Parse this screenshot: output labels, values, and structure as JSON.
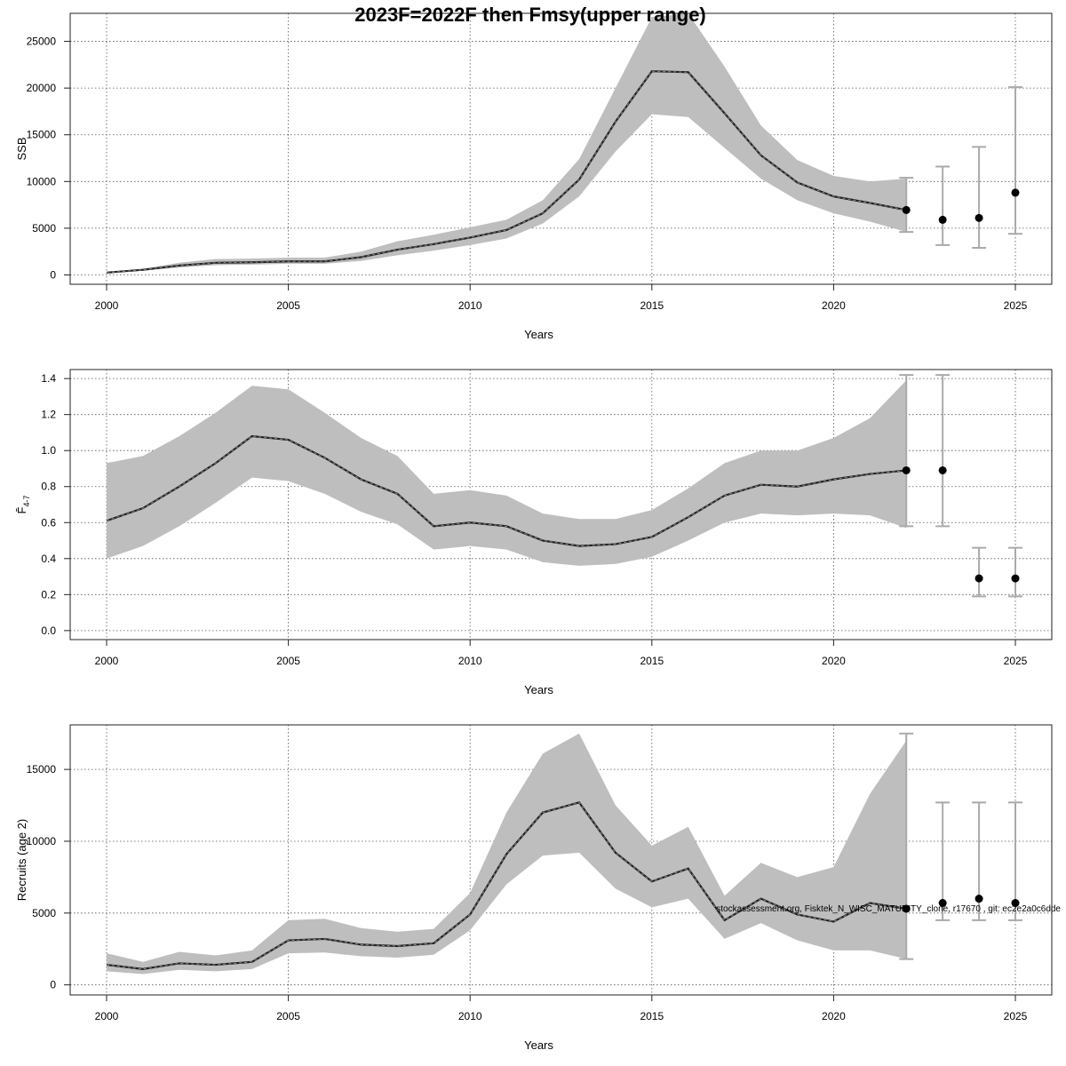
{
  "figure": {
    "title": "2023F=2022F then Fmsy(upper range)",
    "footer": "stockassessment.org, Fisktek_N_WISC_MATURITY_clone, r17670 , git: ec2e2a0c6dde"
  },
  "chart_data": [
    {
      "type": "line",
      "xlabel": "Years",
      "ylabel": "SSB",
      "xlim": [
        1999,
        2026
      ],
      "ylim": [
        -1000,
        28000
      ],
      "xticks": [
        2000,
        2005,
        2010,
        2015,
        2020,
        2025
      ],
      "yticks": [
        0,
        5000,
        10000,
        15000,
        20000,
        25000
      ],
      "grid": true,
      "series": [
        {
          "x": [
            2000,
            2001,
            2002,
            2003,
            2004,
            2005,
            2006,
            2007,
            2008,
            2009,
            2010,
            2011,
            2012,
            2013,
            2014,
            2015,
            2016,
            2017,
            2018,
            2019,
            2020,
            2021,
            2022
          ],
          "values": [
            250,
            550,
            1000,
            1300,
            1350,
            1450,
            1450,
            1900,
            2700,
            3300,
            4000,
            4800,
            6600,
            10200,
            16400,
            21800,
            21700,
            17300,
            12800,
            9900,
            8400,
            7700,
            6950
          ],
          "lower": [
            200,
            450,
            800,
            1050,
            1100,
            1200,
            1200,
            1500,
            2100,
            2600,
            3200,
            3900,
            5500,
            8400,
            13200,
            17200,
            16900,
            13600,
            10300,
            8000,
            6600,
            5700,
            4600
          ],
          "upper": [
            300,
            650,
            1300,
            1700,
            1750,
            1850,
            1850,
            2500,
            3600,
            4300,
            5100,
            5900,
            8000,
            12400,
            20000,
            27600,
            28000,
            22300,
            16000,
            12300,
            10600,
            10000,
            10300
          ]
        }
      ],
      "points": [
        {
          "x": 2022,
          "y": 6950,
          "lower": 4600,
          "upper": 10400
        },
        {
          "x": 2023,
          "y": 5900,
          "lower": 3200,
          "upper": 11600
        },
        {
          "x": 2024,
          "y": 6100,
          "lower": 2900,
          "upper": 13700
        },
        {
          "x": 2025,
          "y": 8800,
          "lower": 4400,
          "upper": 20100
        }
      ]
    },
    {
      "type": "line",
      "xlabel": "Years",
      "ylabel": "F̄4-7",
      "ylabel_main": "F̄",
      "ylabel_sub": "4-7",
      "xlim": [
        1999,
        2026
      ],
      "ylim": [
        -0.05,
        1.45
      ],
      "xticks": [
        2000,
        2005,
        2010,
        2015,
        2020,
        2025
      ],
      "yticks": [
        0.0,
        0.2,
        0.4,
        0.6,
        0.8,
        1.0,
        1.2,
        1.4
      ],
      "ytick_labels": [
        "0.0",
        "0.2",
        "0.4",
        "0.6",
        "0.8",
        "1.0",
        "1.2",
        "1.4"
      ],
      "grid": true,
      "series": [
        {
          "x": [
            2000,
            2001,
            2002,
            2003,
            2004,
            2005,
            2006,
            2007,
            2008,
            2009,
            2010,
            2011,
            2012,
            2013,
            2014,
            2015,
            2016,
            2017,
            2018,
            2019,
            2020,
            2021,
            2022
          ],
          "values": [
            0.61,
            0.68,
            0.8,
            0.93,
            1.08,
            1.06,
            0.96,
            0.84,
            0.76,
            0.58,
            0.6,
            0.58,
            0.5,
            0.47,
            0.48,
            0.52,
            0.63,
            0.75,
            0.81,
            0.8,
            0.84,
            0.87,
            0.89
          ],
          "lower": [
            0.4,
            0.47,
            0.58,
            0.71,
            0.85,
            0.83,
            0.76,
            0.66,
            0.59,
            0.45,
            0.47,
            0.45,
            0.38,
            0.36,
            0.37,
            0.41,
            0.5,
            0.6,
            0.65,
            0.64,
            0.65,
            0.64,
            0.57
          ],
          "upper": [
            0.93,
            0.97,
            1.08,
            1.21,
            1.36,
            1.34,
            1.21,
            1.07,
            0.97,
            0.76,
            0.78,
            0.75,
            0.65,
            0.62,
            0.62,
            0.67,
            0.79,
            0.93,
            1.0,
            1.0,
            1.07,
            1.18,
            1.39
          ]
        }
      ],
      "points": [
        {
          "x": 2022,
          "y": 0.89,
          "lower": 0.58,
          "upper": 1.42
        },
        {
          "x": 2023,
          "y": 0.89,
          "lower": 0.58,
          "upper": 1.42
        },
        {
          "x": 2024,
          "y": 0.29,
          "lower": 0.19,
          "upper": 0.46
        },
        {
          "x": 2025,
          "y": 0.29,
          "lower": 0.19,
          "upper": 0.46
        }
      ]
    },
    {
      "type": "line",
      "xlabel": "Years",
      "ylabel": "Recruits (age 2)",
      "xlim": [
        1999,
        2026
      ],
      "ylim": [
        -700,
        18100
      ],
      "xticks": [
        2000,
        2005,
        2010,
        2015,
        2020,
        2025
      ],
      "yticks": [
        0,
        5000,
        10000,
        15000
      ],
      "grid": true,
      "series": [
        {
          "x": [
            2000,
            2001,
            2002,
            2003,
            2004,
            2005,
            2006,
            2007,
            2008,
            2009,
            2010,
            2011,
            2012,
            2013,
            2014,
            2015,
            2016,
            2017,
            2018,
            2019,
            2020,
            2021,
            2022
          ],
          "values": [
            1400,
            1100,
            1500,
            1400,
            1600,
            3100,
            3200,
            2800,
            2700,
            2900,
            4900,
            9100,
            12000,
            12700,
            9200,
            7200,
            8100,
            4500,
            6000,
            4900,
            4400,
            5700,
            5300
          ],
          "lower": [
            950,
            750,
            1050,
            950,
            1100,
            2200,
            2250,
            2000,
            1900,
            2100,
            3800,
            7000,
            9000,
            9200,
            6700,
            5400,
            6000,
            3200,
            4300,
            3100,
            2400,
            2400,
            1800
          ],
          "upper": [
            2200,
            1600,
            2300,
            2050,
            2400,
            4500,
            4600,
            3950,
            3700,
            3900,
            6400,
            12000,
            16100,
            17500,
            12500,
            9700,
            11000,
            6200,
            8500,
            7500,
            8200,
            13300,
            17000
          ]
        }
      ],
      "points": [
        {
          "x": 2022,
          "y": 5300,
          "lower": 1800,
          "upper": 17500
        },
        {
          "x": 2023,
          "y": 5700,
          "lower": 4500,
          "upper": 12700
        },
        {
          "x": 2024,
          "y": 6000,
          "lower": 4500,
          "upper": 12700
        },
        {
          "x": 2025,
          "y": 5700,
          "lower": 4500,
          "upper": 12700
        }
      ]
    }
  ]
}
